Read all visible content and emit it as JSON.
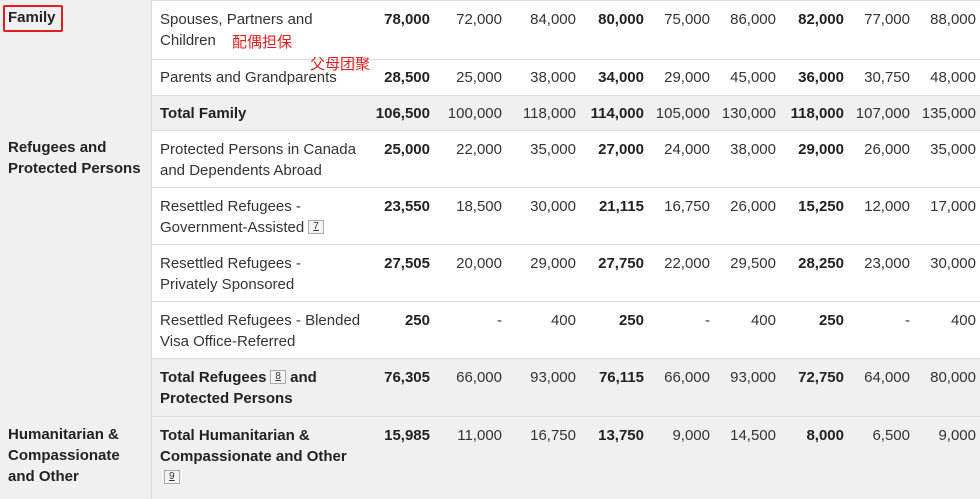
{
  "categories": [
    {
      "label": "Family"
    },
    {
      "label": "Refugees and Protected Persons"
    },
    {
      "label": "Humanitarian & Compassionate and Other"
    }
  ],
  "rows": [
    {
      "label": "Spouses, Partners and Children",
      "values": [
        "78,000",
        "72,000",
        "84,000",
        "80,000",
        "75,000",
        "86,000",
        "82,000",
        "77,000",
        "88,000"
      ]
    },
    {
      "label": "Parents and Grandparents",
      "values": [
        "28,500",
        "25,000",
        "38,000",
        "34,000",
        "29,000",
        "45,000",
        "36,000",
        "30,750",
        "48,000"
      ]
    },
    {
      "label": "Total Family",
      "values": [
        "106,500",
        "100,000",
        "118,000",
        "114,000",
        "105,000",
        "130,000",
        "118,000",
        "107,000",
        "135,000"
      ]
    },
    {
      "label": "Protected Persons in Canada and Dependents Abroad",
      "values": [
        "25,000",
        "22,000",
        "35,000",
        "27,000",
        "24,000",
        "38,000",
        "29,000",
        "26,000",
        "35,000"
      ]
    },
    {
      "label": "Resettled Refugees - Government-Assisted",
      "footnote": "7",
      "values": [
        "23,550",
        "18,500",
        "30,000",
        "21,115",
        "16,750",
        "26,000",
        "15,250",
        "12,000",
        "17,000"
      ]
    },
    {
      "label": "Resettled Refugees - Privately Sponsored",
      "values": [
        "27,505",
        "20,000",
        "29,000",
        "27,750",
        "22,000",
        "29,500",
        "28,250",
        "23,000",
        "30,000"
      ]
    },
    {
      "label": "Resettled Refugees - Blended Visa Office-Referred",
      "values": [
        "250",
        "-",
        "400",
        "250",
        "-",
        "400",
        "250",
        "-",
        "400"
      ]
    },
    {
      "label_a": "Total Refugees",
      "footnote": "8",
      "label_b": "and Protected Persons",
      "values": [
        "76,305",
        "66,000",
        "93,000",
        "76,115",
        "66,000",
        "93,000",
        "72,750",
        "64,000",
        "80,000"
      ]
    },
    {
      "label": "Total Humanitarian & Compassionate and Other",
      "footnote": "9",
      "values": [
        "15,985",
        "11,000",
        "16,750",
        "13,750",
        "9,000",
        "14,500",
        "8,000",
        "6,500",
        "9,000"
      ]
    }
  ],
  "annotations": {
    "spouses": "配偶担保",
    "parents": "父母团聚"
  },
  "colors": {
    "annotation": "#e02020",
    "total_bg": "#f0f0f0",
    "category_bg": "#f0f0f0",
    "border": "#dcdcdc"
  }
}
